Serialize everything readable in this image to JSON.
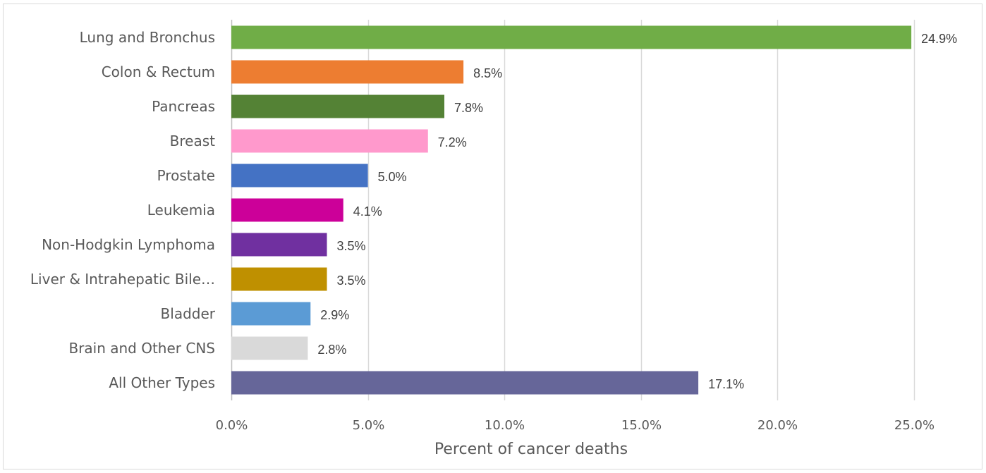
{
  "chart_data": {
    "type": "bar",
    "orientation": "horizontal",
    "categories": [
      "Lung and Bronchus",
      "Colon & Rectum",
      "Pancreas",
      "Breast",
      "Prostate",
      "Leukemia",
      "Non-Hodgkin Lymphoma",
      "Liver & Intrahepatic Bile…",
      "Bladder",
      "Brain and Other CNS",
      "All Other Types"
    ],
    "values": [
      24.9,
      8.5,
      7.8,
      7.2,
      5.0,
      4.1,
      3.5,
      3.5,
      2.9,
      2.8,
      17.1
    ],
    "data_labels": [
      "24.9%",
      "8.5%",
      "7.8%",
      "7.2%",
      "5.0%",
      "4.1%",
      "3.5%",
      "3.5%",
      "2.9%",
      "2.8%",
      "17.1%"
    ],
    "colors": [
      "#70ad47",
      "#ed7d31",
      "#548235",
      "#ff99cc",
      "#4472c4",
      "#cc0099",
      "#7030a0",
      "#bf9000",
      "#5b9bd5",
      "#d9d9d9",
      "#666699"
    ],
    "xlabel": "Percent of cancer deaths",
    "ylabel": "",
    "title": "",
    "xlim": [
      0,
      25
    ],
    "x_ticks": [
      0,
      5,
      10,
      15,
      20,
      25
    ],
    "x_tick_labels": [
      "0.0%",
      "5.0%",
      "10.0%",
      "15.0%",
      "20.0%",
      "25.0%"
    ],
    "grid": "vertical",
    "legend": "none"
  }
}
